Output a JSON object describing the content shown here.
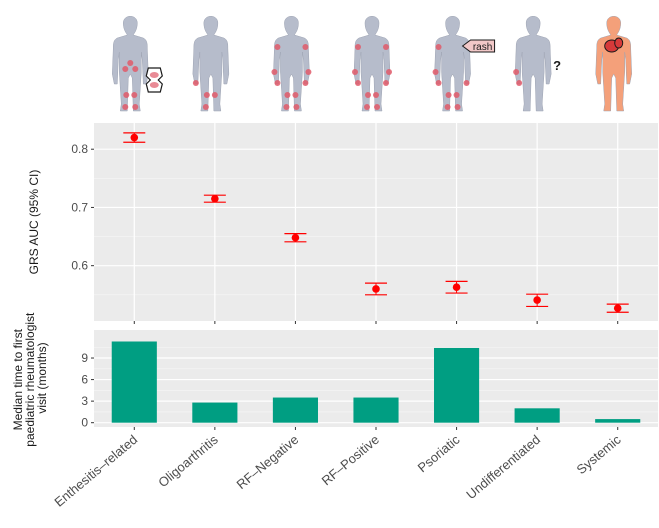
{
  "chart_data": [
    {
      "type": "scatter",
      "ylabel": "GRS AUC (95% CI)",
      "categories": [
        "Enthesitis–related",
        "Oligoarthritis",
        "RF–Negative",
        "RF–Positive",
        "Psoriatic",
        "Undifferentiated",
        "Systemic"
      ],
      "values": [
        0.82,
        0.715,
        0.648,
        0.56,
        0.563,
        0.541,
        0.527
      ],
      "ci_low": [
        0.812,
        0.709,
        0.641,
        0.55,
        0.553,
        0.53,
        0.52
      ],
      "ci_high": [
        0.828,
        0.721,
        0.655,
        0.57,
        0.573,
        0.551,
        0.534
      ],
      "yticks": [
        "0.6",
        "0.7",
        "0.8"
      ],
      "ylim": [
        0.505,
        0.845
      ],
      "grid": true,
      "color": "#ff0000"
    },
    {
      "type": "bar",
      "ylabel_lines": [
        "Median time to first",
        "paediatric rheumatologist",
        "visit (months)"
      ],
      "categories": [
        "Enthesitis–related",
        "Oligoarthritis",
        "RF–Negative",
        "RF–Positive",
        "Psoriatic",
        "Undifferentiated",
        "Systemic"
      ],
      "values": [
        11.3,
        2.8,
        3.5,
        3.5,
        10.4,
        2.0,
        0.5
      ],
      "yticks": [
        "0",
        "3",
        "6",
        "9"
      ],
      "ylim": [
        -0.6,
        12.9
      ],
      "grid": true,
      "color": "#009e82"
    }
  ],
  "illustrations": {
    "rash_label": "rash",
    "unknown_label": "?",
    "body_color": "#b6bccb",
    "joint_color": "#e05a6a",
    "systemic_color": "#f4a07a",
    "organ_color": "#d63a3a",
    "icons": [
      "knee-joint-icon",
      "rash-tag-icon",
      "question-mark-icon",
      "inflamed-organs-icon"
    ]
  },
  "panel_background": "#ebebeb",
  "grid_color": "#ffffff"
}
